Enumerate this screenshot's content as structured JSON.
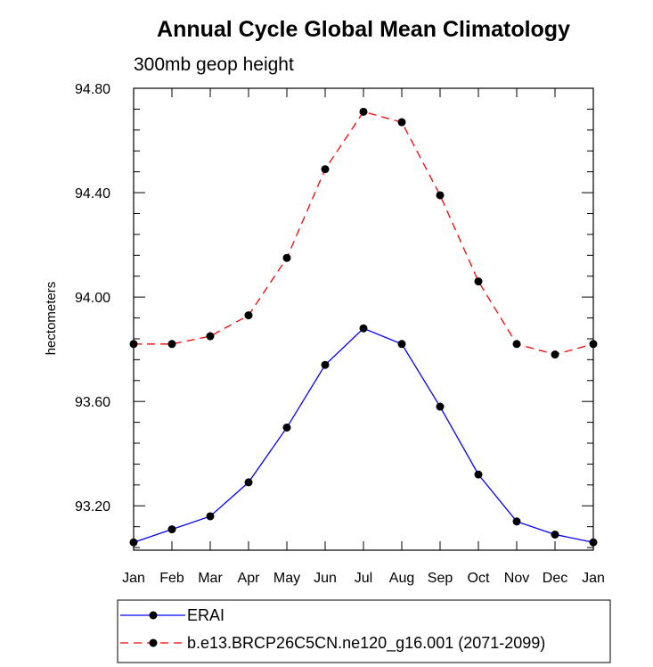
{
  "chart_data": {
    "type": "line",
    "title": "Annual Cycle Global Mean Climatology",
    "subtitle": "300mb geop height",
    "ylabel": "hectometers",
    "xlabel": "",
    "ylim": [
      93.03,
      94.8
    ],
    "yticks": [
      93.2,
      93.6,
      94.0,
      94.4,
      94.8
    ],
    "ytick_labels": [
      "93.20",
      "93.60",
      "94.00",
      "94.40",
      "94.80"
    ],
    "categories": [
      "Jan",
      "Feb",
      "Mar",
      "Apr",
      "May",
      "Jun",
      "Jul",
      "Aug",
      "Sep",
      "Oct",
      "Nov",
      "Dec",
      "Jan"
    ],
    "grid": false,
    "legend_position": "bottom",
    "series": [
      {
        "name": "ERAI",
        "color": "#0000ff",
        "line_style": "solid",
        "marker": "filled-circle",
        "values": [
          93.06,
          93.11,
          93.16,
          93.29,
          93.5,
          93.74,
          93.88,
          93.82,
          93.58,
          93.32,
          93.14,
          93.09,
          93.06
        ]
      },
      {
        "name": "b.e13.BRCP26C5CN.ne120_g16.001 (2071-2099)",
        "color": "#ff0000",
        "line_style": "dashed",
        "marker": "filled-circle",
        "values": [
          93.82,
          93.82,
          93.85,
          93.93,
          94.15,
          94.49,
          94.71,
          94.67,
          94.39,
          94.06,
          93.82,
          93.78,
          93.82
        ]
      }
    ]
  }
}
